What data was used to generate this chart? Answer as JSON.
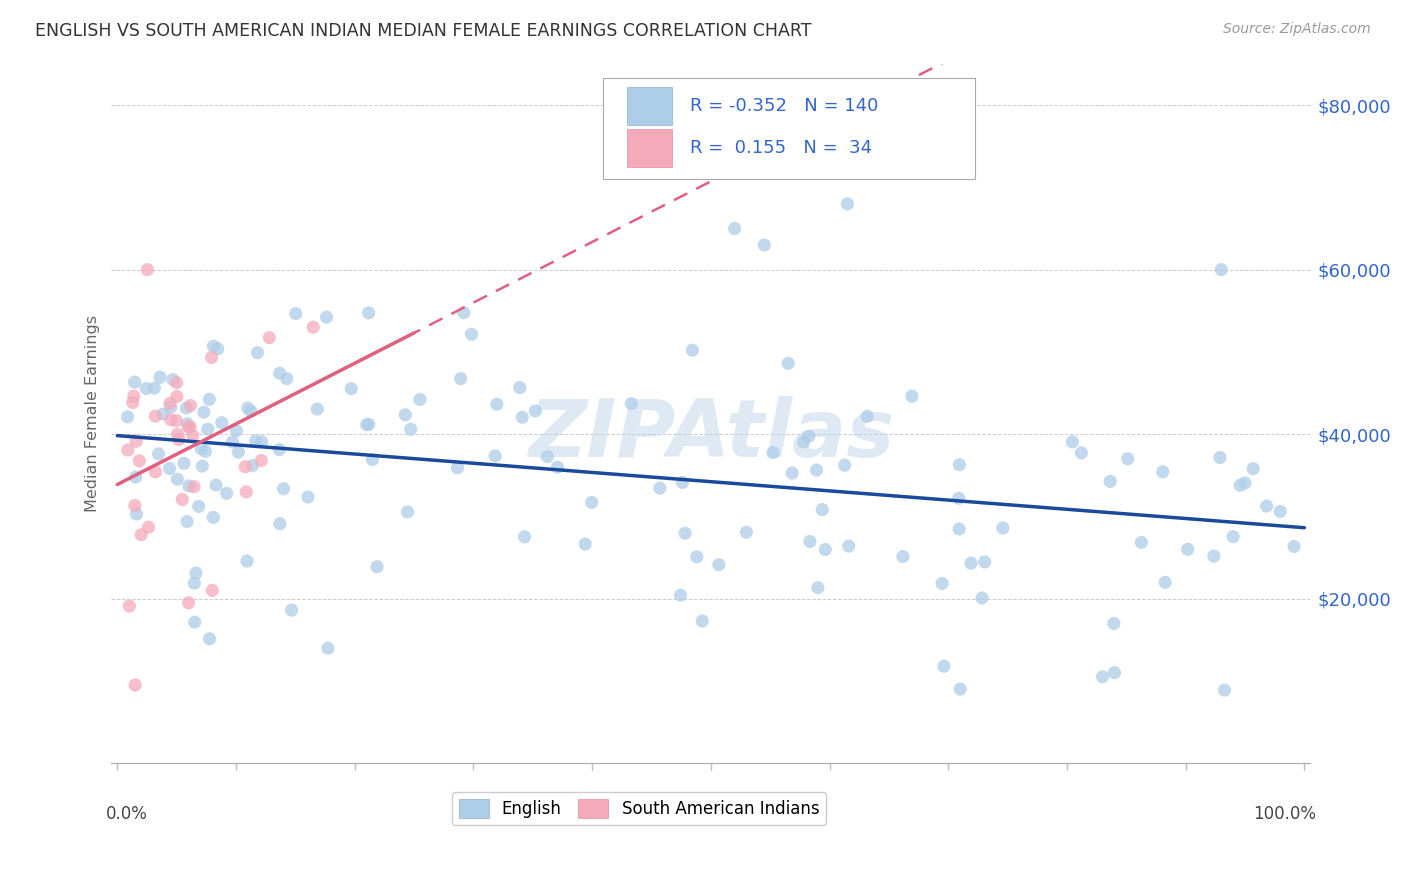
{
  "title": "ENGLISH VS SOUTH AMERICAN INDIAN MEDIAN FEMALE EARNINGS CORRELATION CHART",
  "source": "Source: ZipAtlas.com",
  "ylabel": "Median Female Earnings",
  "yticks": [
    20000,
    40000,
    60000,
    80000
  ],
  "ytick_labels": [
    "$20,000",
    "$40,000",
    "$60,000",
    "$80,000"
  ],
  "ymin": 0,
  "ymax": 85000,
  "xmin": 0.0,
  "xmax": 1.0,
  "watermark": "ZIPAtlas",
  "english_color": "#aecde8",
  "english_line_color": "#1a4a9c",
  "sai_color": "#f4aaba",
  "sai_line_color": "#e06080",
  "legend_text_color": "#3366cc",
  "background_color": "#ffffff",
  "grid_color": "#cccccc",
  "title_color": "#333333",
  "axis_label_color": "#666666",
  "right_label_color": "#3366cc",
  "dot_alpha": 0.75,
  "dot_size": 90,
  "eng_R": -0.352,
  "eng_N": 140,
  "sai_R": 0.155,
  "sai_N": 34
}
